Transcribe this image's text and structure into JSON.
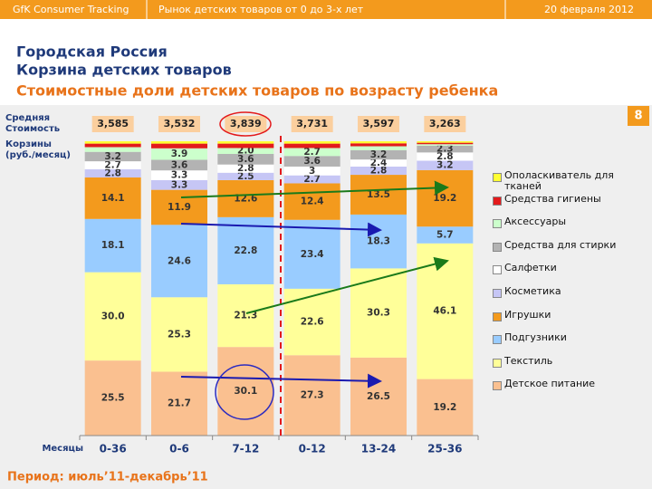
{
  "header": {
    "left": "GfK Consumer Tracking",
    "center": "Рынок детских товаров от 0 до 3-х лет",
    "right": "20 февраля 2012"
  },
  "title_lines": [
    "Городская Россия",
    "Корзина детских товаров"
  ],
  "subtitle": "Стоимостные доли детских товаров по возрасту ребенка",
  "page_number": 8,
  "footer": "Период: июль’11-декабрь’11",
  "chart_data": {
    "type": "bar",
    "stacked": true,
    "categories": [
      "0-36",
      "0-6",
      "7-12",
      "0-12",
      "13-24",
      "25-36"
    ],
    "x_label": "Месяцы",
    "ylim": [
      0,
      100
    ],
    "basket_cost": {
      "label_lines": [
        "Средняя",
        "Стоимость",
        "Корзины",
        "(руб./месяц)"
      ],
      "values": [
        3585,
        3532,
        3839,
        3731,
        3597,
        3263
      ],
      "value_labels": [
        "3,585",
        "3,532",
        "3,839",
        "3,731",
        "3,597",
        "3,263"
      ]
    },
    "series": [
      {
        "name": "Детское питание",
        "color": "#fac090",
        "values": [
          25.5,
          21.7,
          30.1,
          27.3,
          26.5,
          19.2
        ],
        "value_labels": [
          "25.5",
          "21.7",
          "30.1",
          "27.3",
          "26.5",
          "19.2"
        ]
      },
      {
        "name": "Текстиль",
        "color": "#ffff99",
        "values": [
          30.0,
          25.3,
          21.3,
          22.6,
          30.3,
          46.1
        ],
        "value_labels": [
          "30.0",
          "25.3",
          "21.3",
          "22.6",
          "30.3",
          "46.1"
        ]
      },
      {
        "name": "Подгузники",
        "color": "#99ccff",
        "values": [
          18.1,
          24.6,
          22.8,
          23.4,
          18.3,
          5.7
        ],
        "value_labels": [
          "18.1",
          "24.6",
          "22.8",
          "23.4",
          "18.3",
          "5.7"
        ]
      },
      {
        "name": "Игрушки",
        "color": "#f39a1d",
        "values": [
          14.1,
          11.9,
          12.6,
          12.4,
          13.5,
          19.2
        ],
        "value_labels": [
          "14.1",
          "11.9",
          "12.6",
          "12.4",
          "13.5",
          "19.2"
        ]
      },
      {
        "name": "Косметика",
        "color": "#c6c6f5",
        "values": [
          2.8,
          3.3,
          2.5,
          2.7,
          2.8,
          3.2
        ],
        "value_labels": [
          "2.8",
          "3.3",
          "2.5",
          "2.7",
          "2.8",
          "3.2"
        ]
      },
      {
        "name": "Салфетки",
        "color": "#ffffff",
        "values": [
          2.7,
          3.3,
          2.8,
          3,
          2.4,
          2.8
        ],
        "value_labels": [
          "2.7",
          "3.3",
          "2.8",
          "3",
          "2.4",
          "2.8"
        ]
      },
      {
        "name": "Средства для стирки",
        "color": "#b3b3b3",
        "values": [
          3.2,
          3.6,
          3.6,
          3.6,
          3.2,
          2.3
        ],
        "value_labels": [
          "3.2",
          "3.6",
          "3.6",
          "3.6",
          "3.2",
          "2.3"
        ]
      },
      {
        "name": "Аксессуары",
        "color": "#ccffcc",
        "values": [
          1.6,
          3.9,
          2.0,
          2.7,
          1.3,
          0.5
        ],
        "value_labels": [
          null,
          "3.9",
          "2.0",
          "2.7",
          null,
          null
        ]
      },
      {
        "name": "Средства гигиены",
        "color": "#e31a1c",
        "values": [
          1.2,
          1.6,
          1.5,
          1.5,
          1.0,
          0.5
        ],
        "value_labels": [
          null,
          null,
          null,
          null,
          null,
          null
        ]
      },
      {
        "name": "Ополаскиватель для тканей",
        "color": "#ffff33",
        "values": [
          0.8,
          0.8,
          0.8,
          0.8,
          0.7,
          0.5
        ],
        "value_labels": [
          null,
          null,
          null,
          null,
          null,
          null
        ]
      }
    ]
  }
}
